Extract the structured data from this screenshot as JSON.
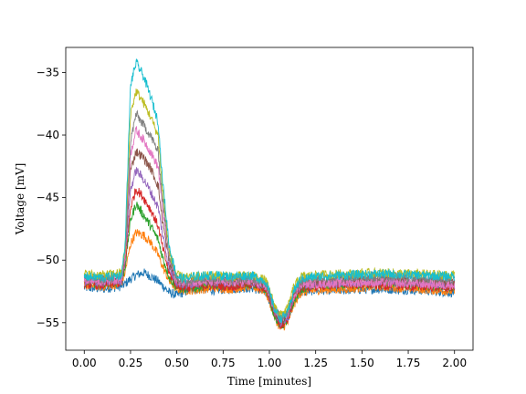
{
  "chart_data": {
    "type": "line",
    "title": "",
    "xlabel": "Time [minutes]",
    "ylabel": "Voltage [mV]",
    "xlim": [
      -0.1,
      2.1
    ],
    "ylim": [
      -57.2,
      -33.0
    ],
    "grid": false,
    "legend": "none",
    "x_ticks": [
      0.0,
      0.25,
      0.5,
      0.75,
      1.0,
      1.25,
      1.5,
      1.75,
      2.0
    ],
    "x_tick_labels": [
      "0.00",
      "0.25",
      "0.50",
      "0.75",
      "1.00",
      "1.25",
      "1.50",
      "1.75",
      "2.00"
    ],
    "y_ticks": [
      -55,
      -50,
      -45,
      -40,
      -35
    ],
    "y_tick_labels": [
      "−55",
      "−50",
      "−45",
      "−40",
      "−35"
    ],
    "x": [
      0.0,
      0.1,
      0.2,
      0.22,
      0.25,
      0.28,
      0.32,
      0.36,
      0.4,
      0.42,
      0.46,
      0.5,
      0.55,
      0.6,
      0.7,
      0.8,
      0.9,
      0.98,
      1.0,
      1.03,
      1.06,
      1.1,
      1.13,
      1.17,
      1.25,
      1.4,
      1.6,
      1.8,
      2.0
    ],
    "series": [
      {
        "color": "#1f77b4",
        "values": [
          -52.2,
          -52.3,
          -52.1,
          -51.9,
          -51.5,
          -51.2,
          -51.0,
          -51.3,
          -51.7,
          -52.0,
          -52.6,
          -52.8,
          -52.5,
          -52.3,
          -52.4,
          -52.3,
          -52.2,
          -52.6,
          -53.2,
          -54.4,
          -55.0,
          -54.6,
          -53.4,
          -52.6,
          -52.4,
          -52.4,
          -52.3,
          -52.4,
          -52.6
        ]
      },
      {
        "color": "#ff7f0e",
        "values": [
          -52.0,
          -52.1,
          -51.9,
          -51.0,
          -48.7,
          -47.8,
          -48.0,
          -48.6,
          -49.6,
          -50.4,
          -51.7,
          -52.3,
          -52.4,
          -52.4,
          -52.2,
          -52.3,
          -52.1,
          -52.5,
          -53.3,
          -54.6,
          -55.5,
          -55.0,
          -53.6,
          -52.6,
          -52.4,
          -52.3,
          -52.1,
          -52.3,
          -52.5
        ]
      },
      {
        "color": "#2ca02c",
        "values": [
          -51.8,
          -51.9,
          -51.7,
          -50.6,
          -46.8,
          -45.5,
          -46.4,
          -47.3,
          -48.4,
          -49.6,
          -51.4,
          -52.2,
          -52.3,
          -52.2,
          -51.9,
          -52.0,
          -51.9,
          -52.3,
          -53.1,
          -54.5,
          -55.3,
          -54.8,
          -53.4,
          -52.3,
          -52.0,
          -52.0,
          -51.9,
          -52.0,
          -52.2
        ]
      },
      {
        "color": "#d62728",
        "values": [
          -51.9,
          -52.0,
          -51.8,
          -50.4,
          -45.8,
          -44.3,
          -45.0,
          -46.0,
          -47.3,
          -48.8,
          -51.1,
          -52.0,
          -52.2,
          -52.1,
          -52.0,
          -52.1,
          -51.9,
          -52.3,
          -53.0,
          -54.3,
          -55.2,
          -54.7,
          -53.2,
          -52.2,
          -52.1,
          -51.9,
          -52.0,
          -52.1,
          -52.2
        ]
      },
      {
        "color": "#9467bd",
        "values": [
          -51.7,
          -51.8,
          -51.6,
          -50.0,
          -44.4,
          -42.8,
          -43.5,
          -44.6,
          -45.8,
          -47.7,
          -50.7,
          -51.8,
          -52.0,
          -51.8,
          -51.7,
          -51.8,
          -51.7,
          -52.1,
          -52.9,
          -54.2,
          -55.0,
          -54.5,
          -53.0,
          -52.0,
          -51.9,
          -51.8,
          -51.7,
          -51.8,
          -52.0
        ]
      },
      {
        "color": "#8c564b",
        "values": [
          -51.5,
          -51.6,
          -51.4,
          -49.8,
          -42.8,
          -41.3,
          -41.8,
          -42.7,
          -44.1,
          -46.6,
          -50.3,
          -51.6,
          -51.8,
          -51.7,
          -51.6,
          -51.7,
          -51.6,
          -52.0,
          -52.8,
          -54.1,
          -54.9,
          -54.3,
          -52.8,
          -51.8,
          -51.7,
          -51.6,
          -51.5,
          -51.6,
          -51.8
        ]
      },
      {
        "color": "#e377c2",
        "values": [
          -51.6,
          -51.7,
          -51.5,
          -49.7,
          -41.5,
          -39.6,
          -40.4,
          -41.4,
          -42.6,
          -45.6,
          -50.0,
          -51.6,
          -51.8,
          -51.7,
          -51.7,
          -51.8,
          -51.7,
          -52.1,
          -52.8,
          -54.0,
          -54.7,
          -54.2,
          -52.9,
          -51.9,
          -51.9,
          -51.8,
          -51.8,
          -51.9,
          -52.0
        ]
      },
      {
        "color": "#7f7f7f",
        "values": [
          -51.4,
          -51.5,
          -51.3,
          -49.5,
          -40.5,
          -38.3,
          -39.2,
          -40.1,
          -41.4,
          -44.8,
          -49.8,
          -51.5,
          -51.6,
          -51.5,
          -51.4,
          -51.5,
          -51.4,
          -51.8,
          -52.6,
          -53.9,
          -54.6,
          -54.1,
          -52.6,
          -51.6,
          -51.4,
          -51.4,
          -51.3,
          -51.4,
          -51.5
        ]
      },
      {
        "color": "#bcbd22",
        "values": [
          -51.1,
          -51.2,
          -51.0,
          -49.2,
          -38.3,
          -36.5,
          -37.4,
          -38.6,
          -40.1,
          -44.0,
          -49.4,
          -51.2,
          -51.4,
          -51.3,
          -51.2,
          -51.3,
          -51.2,
          -51.6,
          -52.4,
          -53.7,
          -54.4,
          -53.8,
          -52.2,
          -51.3,
          -51.2,
          -51.1,
          -51.0,
          -51.1,
          -51.2
        ]
      },
      {
        "color": "#17becf",
        "values": [
          -51.3,
          -51.4,
          -51.2,
          -49.0,
          -36.0,
          -34.2,
          -35.3,
          -37.0,
          -39.0,
          -43.2,
          -49.0,
          -51.3,
          -51.5,
          -51.3,
          -51.2,
          -51.3,
          -51.2,
          -51.7,
          -52.6,
          -54.0,
          -54.7,
          -54.2,
          -52.5,
          -51.5,
          -51.3,
          -51.2,
          -51.1,
          -51.2,
          -51.3
        ]
      }
    ]
  }
}
